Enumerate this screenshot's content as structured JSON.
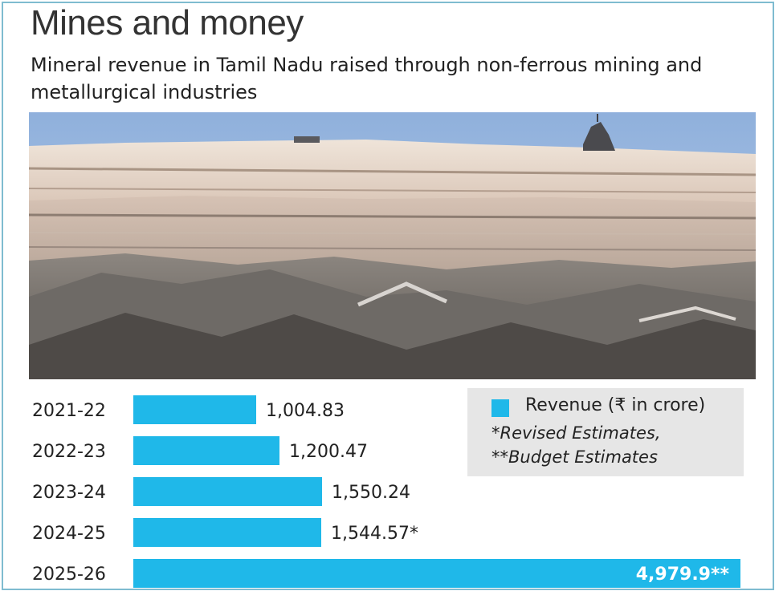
{
  "header": {
    "title": "Mines and money",
    "subtitle": "Mineral revenue in Tamil Nadu raised through non-ferrous mining and metallurgical  industries"
  },
  "legend": {
    "label": "Revenue (₹ in crore)",
    "notes": [
      "*Revised Estimates,",
      "**Budget Estimates"
    ]
  },
  "chart_data": {
    "type": "bar",
    "orientation": "horizontal",
    "categories": [
      "2021-22",
      "2022-23",
      "2023-24",
      "2024-25",
      "2025-26"
    ],
    "series": [
      {
        "name": "Revenue (₹ in crore)",
        "values": [
          1004.83,
          1200.47,
          1550.24,
          1544.57,
          4979.9
        ],
        "labels": [
          "1,004.83",
          "1,200.47",
          "1,550.24",
          "1,544.57*",
          "4,979.9**"
        ]
      }
    ],
    "xlim": [
      0,
      4979.9
    ],
    "grid": false,
    "legend_position": "top-right",
    "color": "#1fb8e9"
  }
}
